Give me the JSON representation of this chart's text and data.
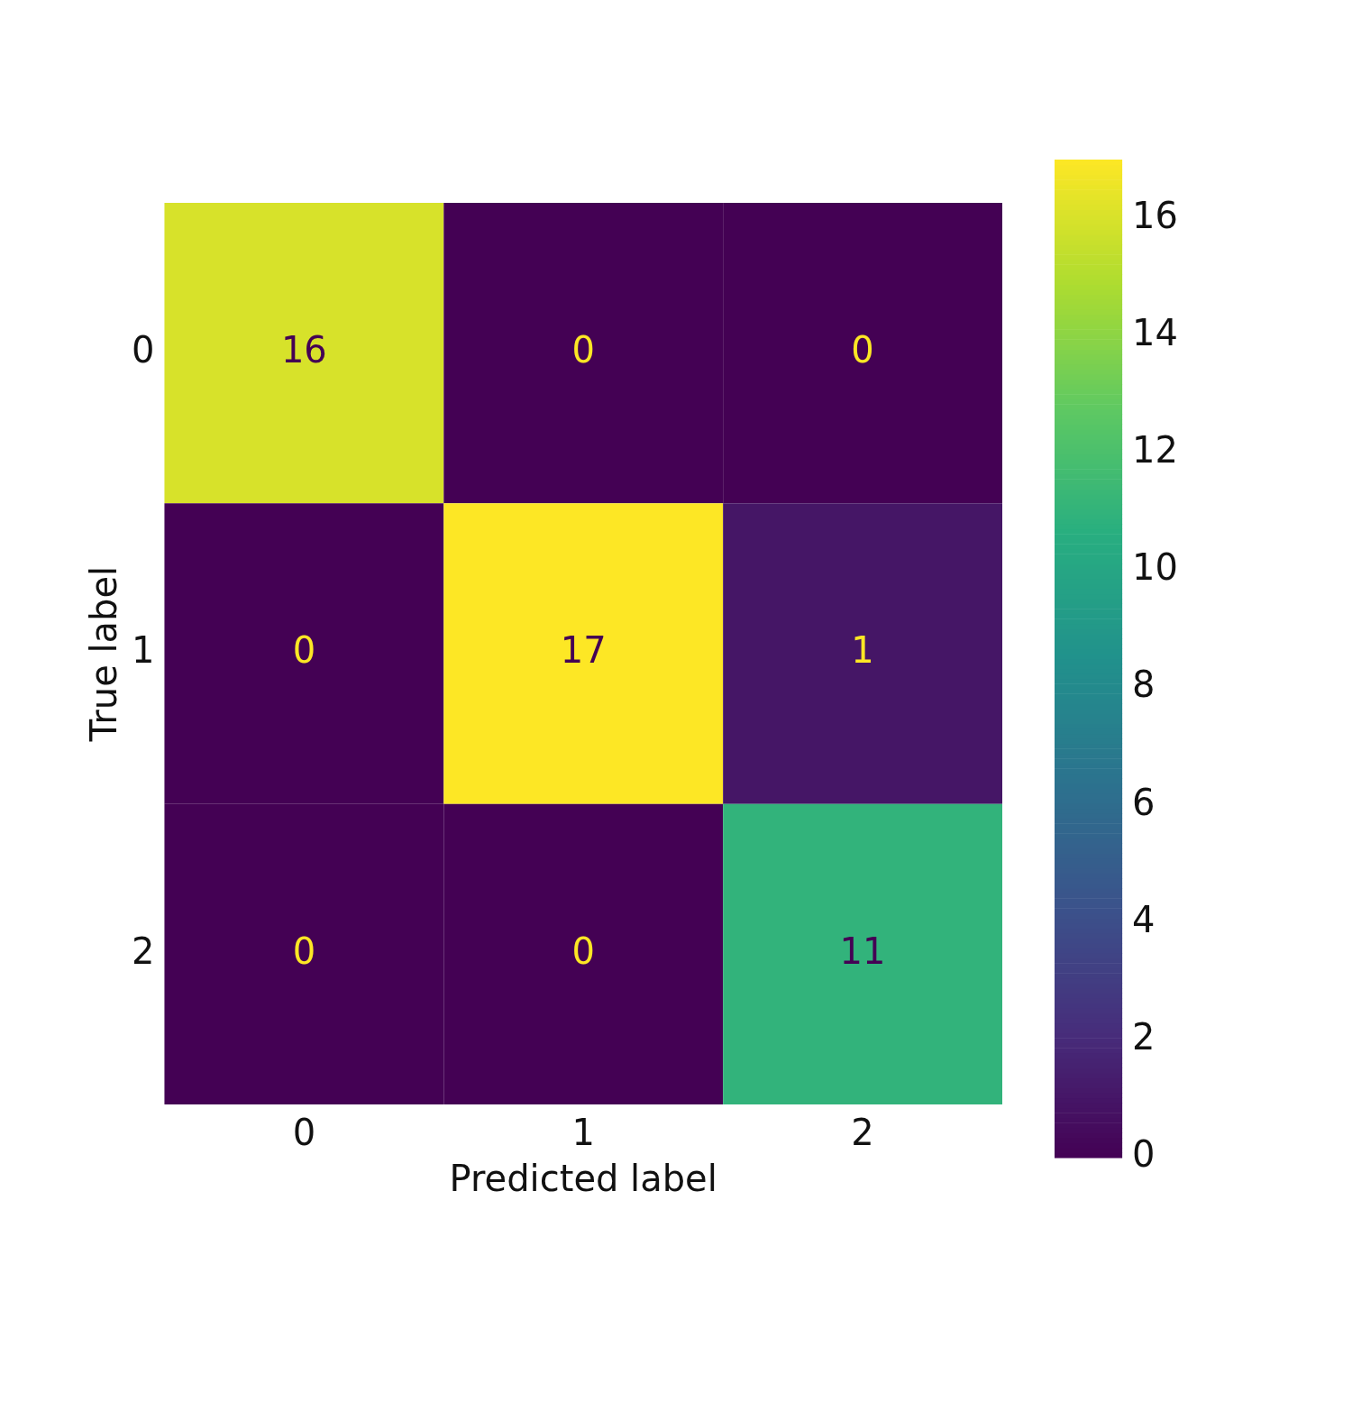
{
  "chart_data": {
    "type": "heatmap",
    "xlabel": "Predicted label",
    "ylabel": "True label",
    "categories": [
      "0",
      "1",
      "2"
    ],
    "y_categories": [
      "0",
      "1",
      "2"
    ],
    "cells": [
      [
        16,
        0,
        0
      ],
      [
        0,
        17,
        1
      ],
      [
        0,
        0,
        11
      ]
    ],
    "clim": [
      0,
      17
    ],
    "cticks": [
      0,
      2,
      4,
      6,
      8,
      10,
      12,
      14,
      16
    ],
    "data_labels": true
  }
}
